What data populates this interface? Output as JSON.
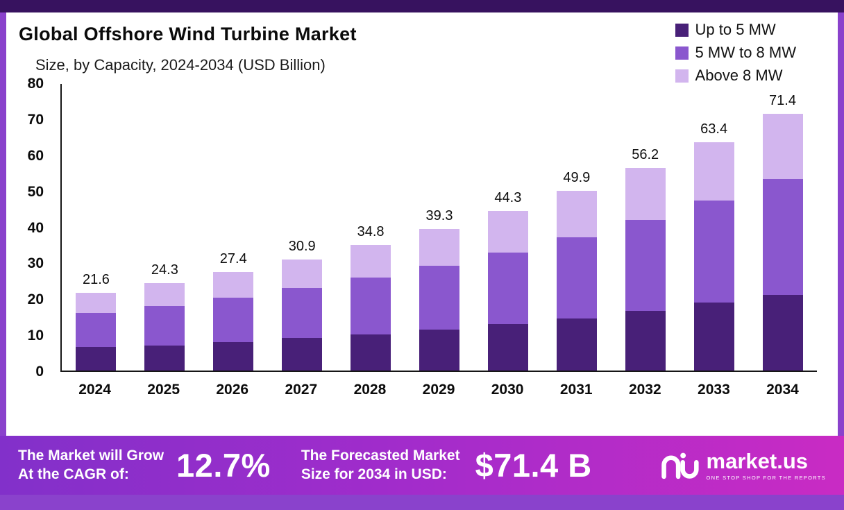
{
  "header": {
    "title": "Global Offshore Wind Turbine Market",
    "subtitle": "Size, by Capacity, 2024-2034 (USD Billion)"
  },
  "chart_data": {
    "type": "bar",
    "stacked": true,
    "title": "Global Offshore Wind Turbine Market Size, by Capacity, 2024-2034 (USD Billion)",
    "categories": [
      "2024",
      "2025",
      "2026",
      "2027",
      "2028",
      "2029",
      "2030",
      "2031",
      "2032",
      "2033",
      "2034"
    ],
    "series": [
      {
        "name": "Up to 5 MW",
        "color": "#482078",
        "values": [
          6.5,
          7.0,
          8.0,
          9.0,
          10.0,
          11.3,
          13.0,
          14.5,
          16.5,
          18.8,
          21.0
        ]
      },
      {
        "name": "5 MW to 8 MW",
        "color": "#8a57ce",
        "values": [
          9.5,
          11.0,
          12.2,
          14.0,
          15.8,
          17.8,
          19.8,
          22.5,
          25.4,
          28.4,
          32.2
        ]
      },
      {
        "name": "Above 8 MW",
        "color": "#d2b5ee",
        "values": [
          5.6,
          6.3,
          7.2,
          7.9,
          9.0,
          10.2,
          11.5,
          12.9,
          14.3,
          16.2,
          18.2
        ]
      }
    ],
    "totals": [
      "21.6",
      "24.3",
      "27.4",
      "30.9",
      "34.8",
      "39.3",
      "44.3",
      "49.9",
      "56.2",
      "63.4",
      "71.4"
    ],
    "xlabel": "",
    "ylabel": "",
    "ylim": [
      0,
      80
    ],
    "yticks": [
      "0",
      "10",
      "20",
      "30",
      "40",
      "50",
      "60",
      "70",
      "80"
    ],
    "grid": false,
    "legend_position": "top-right"
  },
  "banner": {
    "cagr_label_line1": "The Market will Grow",
    "cagr_label_line2": "At the CAGR of:",
    "cagr_value": "12.7%",
    "forecast_label_line1": "The Forecasted Market",
    "forecast_label_line2": "Size for 2034 in USD:",
    "forecast_value": "$71.4 B",
    "brand_name": "market.us",
    "brand_tagline": "ONE STOP SHOP FOR THE REPORTS"
  }
}
